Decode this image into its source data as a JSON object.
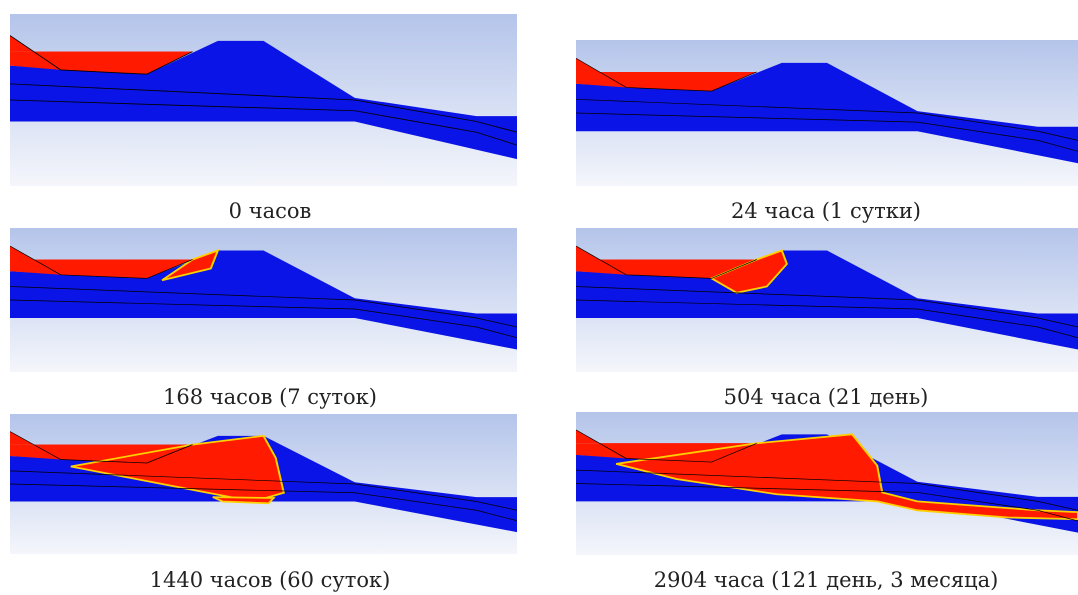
{
  "panels": [
    {
      "caption": "0 часов"
    },
    {
      "caption": "24 часа (1 сутки)"
    },
    {
      "caption": "168 часов (7 суток)"
    },
    {
      "caption": "504 часа (21 день)"
    },
    {
      "caption": "1440 часов (60 суток)"
    },
    {
      "caption": "2904 часа (121 день, 3 месяца)"
    }
  ]
}
